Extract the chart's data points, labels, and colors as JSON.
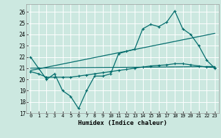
{
  "title": "",
  "xlabel": "Humidex (Indice chaleur)",
  "background_color": "#cce8e0",
  "grid_color": "#ffffff",
  "line_color": "#006b6b",
  "xlim": [
    -0.5,
    23.5
  ],
  "ylim": [
    17,
    26.7
  ],
  "yticks": [
    17,
    18,
    19,
    20,
    21,
    22,
    23,
    24,
    25,
    26
  ],
  "xticks": [
    0,
    1,
    2,
    3,
    4,
    5,
    6,
    7,
    8,
    9,
    10,
    11,
    12,
    13,
    14,
    15,
    16,
    17,
    18,
    19,
    20,
    21,
    22,
    23
  ],
  "series1_x": [
    0,
    1,
    2,
    3,
    4,
    5,
    6,
    7,
    8,
    9,
    10,
    11,
    12,
    13,
    14,
    15,
    16,
    17,
    18,
    19,
    20,
    21,
    22,
    23
  ],
  "series1_y": [
    22.0,
    21.0,
    20.0,
    20.5,
    19.0,
    18.5,
    17.4,
    19.0,
    20.3,
    20.3,
    20.5,
    22.3,
    22.5,
    22.7,
    24.5,
    24.9,
    24.7,
    25.1,
    26.1,
    24.5,
    24.0,
    23.0,
    21.7,
    21.0
  ],
  "series2_x": [
    0,
    1,
    2,
    3,
    4,
    5,
    6,
    7,
    8,
    9,
    10,
    11,
    12,
    13,
    14,
    15,
    16,
    17,
    18,
    19,
    20,
    21,
    22,
    23
  ],
  "series2_y": [
    20.7,
    20.5,
    20.2,
    20.2,
    20.2,
    20.2,
    20.3,
    20.4,
    20.5,
    20.6,
    20.7,
    20.8,
    20.9,
    21.0,
    21.1,
    21.2,
    21.25,
    21.3,
    21.4,
    21.4,
    21.3,
    21.2,
    21.1,
    21.05
  ],
  "trend1_x": [
    0,
    23
  ],
  "trend1_y": [
    21.0,
    21.15
  ],
  "trend2_x": [
    0,
    23
  ],
  "trend2_y": [
    20.8,
    24.1
  ]
}
